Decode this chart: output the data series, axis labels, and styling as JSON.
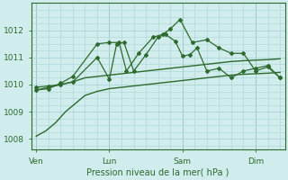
{
  "bg_color": "#d0ecec",
  "grid_color": "#aad4d4",
  "line_color": "#2d6a2d",
  "xlabel": "Pression niveau de la mer( hPa )",
  "ylim": [
    1007.6,
    1013.0
  ],
  "yticks": [
    1008,
    1009,
    1010,
    1011,
    1012
  ],
  "xtick_labels": [
    "Ven",
    "Lun",
    "Sam",
    "Dim"
  ],
  "xtick_positions": [
    0,
    3,
    6,
    9
  ],
  "xlim": [
    -0.2,
    10.2
  ],
  "series1_x": [
    0.0,
    0.4,
    0.8,
    1.2,
    1.6,
    2.0,
    2.5,
    3.0,
    3.5,
    4.0,
    4.5,
    5.0,
    5.5,
    6.0,
    6.5,
    7.0,
    7.5,
    8.0,
    8.5,
    9.0,
    9.5,
    10.0
  ],
  "series1_y": [
    1008.1,
    1008.3,
    1008.6,
    1009.0,
    1009.3,
    1009.6,
    1009.75,
    1009.85,
    1009.9,
    1009.95,
    1010.0,
    1010.05,
    1010.1,
    1010.15,
    1010.2,
    1010.25,
    1010.3,
    1010.35,
    1010.38,
    1010.4,
    1010.42,
    1010.45
  ],
  "series2_x": [
    0.0,
    0.5,
    1.0,
    1.5,
    2.0,
    2.5,
    3.0,
    3.5,
    4.0,
    4.5,
    5.0,
    5.5,
    6.0,
    6.5,
    7.0,
    7.5,
    8.0,
    8.5,
    9.0,
    9.5,
    10.0
  ],
  "series2_y": [
    1009.8,
    1009.9,
    1010.0,
    1010.1,
    1010.25,
    1010.3,
    1010.35,
    1010.4,
    1010.45,
    1010.5,
    1010.55,
    1010.6,
    1010.65,
    1010.7,
    1010.75,
    1010.8,
    1010.85,
    1010.88,
    1010.9,
    1010.92,
    1010.95
  ],
  "series3_x": [
    0.0,
    0.5,
    1.0,
    1.5,
    2.5,
    3.0,
    3.3,
    3.6,
    4.0,
    4.5,
    5.0,
    5.3,
    5.7,
    6.0,
    6.3,
    6.6,
    7.0,
    7.5,
    8.0,
    8.5,
    9.0,
    9.5,
    10.0
  ],
  "series3_y": [
    1009.9,
    1009.95,
    1010.0,
    1010.1,
    1011.0,
    1010.2,
    1011.5,
    1011.55,
    1010.5,
    1011.1,
    1011.75,
    1011.85,
    1011.6,
    1011.05,
    1011.1,
    1011.35,
    1010.5,
    1010.6,
    1010.25,
    1010.5,
    1010.6,
    1010.7,
    1010.25
  ],
  "series4_x": [
    0.0,
    0.5,
    1.0,
    1.5,
    2.5,
    3.0,
    3.4,
    3.7,
    4.2,
    4.8,
    5.2,
    5.5,
    5.9,
    6.4,
    7.0,
    7.5,
    8.0,
    8.5,
    9.0,
    9.5,
    10.0
  ],
  "series4_y": [
    1009.8,
    1009.85,
    1010.05,
    1010.3,
    1011.5,
    1011.55,
    1011.55,
    1010.5,
    1011.15,
    1011.75,
    1011.85,
    1012.05,
    1012.4,
    1011.55,
    1011.65,
    1011.35,
    1011.15,
    1011.15,
    1010.5,
    1010.65,
    1010.25
  ]
}
